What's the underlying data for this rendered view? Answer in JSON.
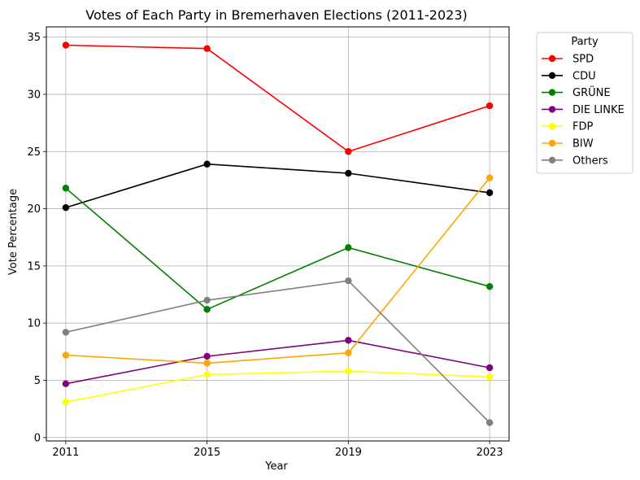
{
  "chart_data": {
    "type": "line",
    "title": "Votes of Each Party in Bremerhaven Elections (2011-2023)",
    "xlabel": "Year",
    "ylabel": "Vote Percentage",
    "x": [
      2011,
      2015,
      2019,
      2023
    ],
    "x_tick_labels": [
      "2011",
      "2015",
      "2019",
      "2023"
    ],
    "ylim": [
      -0.3,
      35.9
    ],
    "y_ticks": [
      0,
      5,
      10,
      15,
      20,
      25,
      30,
      35
    ],
    "grid": true,
    "legend_title": "Party",
    "legend_position": "outside-top-right",
    "series": [
      {
        "name": "SPD",
        "color": "#ff0000",
        "values": [
          34.3,
          34.0,
          25.0,
          29.0
        ]
      },
      {
        "name": "CDU",
        "color": "#000000",
        "values": [
          20.1,
          23.9,
          23.1,
          21.4
        ]
      },
      {
        "name": "GRÜNE",
        "color": "#008000",
        "values": [
          21.8,
          11.2,
          16.6,
          13.2
        ]
      },
      {
        "name": "DIE LINKE",
        "color": "#800080",
        "values": [
          4.7,
          7.1,
          8.5,
          6.1
        ]
      },
      {
        "name": "FDP",
        "color": "#ffff00",
        "values": [
          3.1,
          5.5,
          5.8,
          5.3
        ]
      },
      {
        "name": "BIW",
        "color": "#ffa500",
        "values": [
          7.2,
          6.5,
          7.4,
          22.7
        ]
      },
      {
        "name": "Others",
        "color": "#808080",
        "values": [
          9.2,
          12.0,
          13.7,
          1.3
        ]
      }
    ]
  }
}
